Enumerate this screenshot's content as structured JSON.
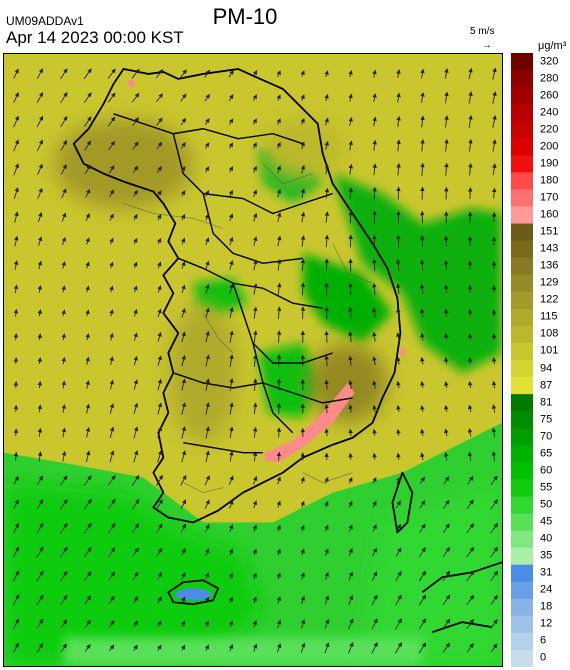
{
  "header": {
    "title": "PM-10",
    "model": "UM09ADDAv1",
    "datetime": "Apr 14 2023 00:00 KST",
    "ref_speed": "5 m/s",
    "ref_arrow": "→",
    "unit": "μg/m³"
  },
  "legend": {
    "ticks": [
      "320",
      "280",
      "260",
      "240",
      "220",
      "200",
      "190",
      "180",
      "170",
      "160",
      "151",
      "143",
      "136",
      "129",
      "122",
      "115",
      "108",
      "101",
      "94",
      "87",
      "81",
      "75",
      "70",
      "65",
      "60",
      "55",
      "50",
      "45",
      "40",
      "35",
      "31",
      "24",
      "18",
      "12",
      "6",
      "0"
    ],
    "colors": [
      "#700000",
      "#8c0000",
      "#a00000",
      "#b40000",
      "#c80000",
      "#dc0000",
      "#f01010",
      "#ff4a4a",
      "#ff7070",
      "#ff9a9a",
      "#6c5a18",
      "#7a6a1c",
      "#887a20",
      "#958a24",
      "#a39a28",
      "#b0aa2a",
      "#bcb82c",
      "#c9c62e",
      "#d6d430",
      "#e3e232",
      "#007a00",
      "#008c00",
      "#009e00",
      "#00b000",
      "#00c000",
      "#10cc10",
      "#30d830",
      "#58e058",
      "#80e880",
      "#a8f0a8",
      "#4a8ce8",
      "#6a9ee8",
      "#88b2e8",
      "#a0c2e8",
      "#b4d0ea",
      "#c8dcec"
    ]
  }
}
